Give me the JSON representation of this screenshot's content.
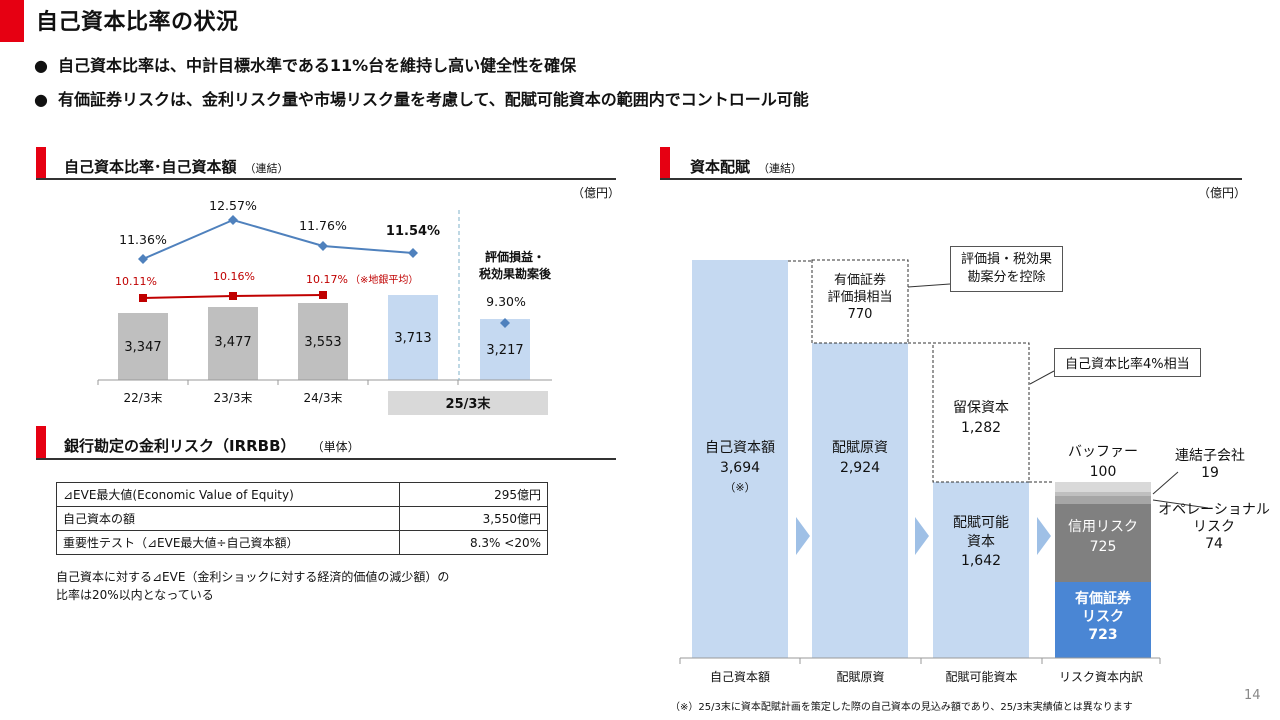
{
  "page": {
    "title": "自己資本比率の状況",
    "bullets": [
      "自己資本比率は、中計目標水準である11%台を維持し高い健全性を確保",
      "有価証券リスクは、金利リスク量や市場リスク量を考慮して、配賦可能資本の範囲内でコントロール可能"
    ],
    "bullet_glyph": "●",
    "page_number": "14",
    "footnote": "（※）25/3末に資本配賦計画を策定した際の自己資本の見込み額であり、25/3末実績値とは異なります"
  },
  "left_chart": {
    "section_title": "自己資本比率･自己資本額",
    "section_sub": "（連結）",
    "unit": "（億円）",
    "ratio_labels": [
      "11.36%",
      "12.57%",
      "11.76%",
      "11.54%"
    ],
    "regional_labels": [
      "10.11%",
      "10.16%",
      "10.17%"
    ],
    "regional_note": "（※地銀平均）",
    "after_label": "評価損益・\n税効果勘案後",
    "after_ratio": "9.30%",
    "bar_values": [
      "3,347",
      "3,477",
      "3,553",
      "3,713",
      "3,217"
    ],
    "categories": [
      "22/3末",
      "23/3末",
      "24/3末"
    ],
    "highlight_category": "25/3末"
  },
  "chart_data": {
    "type": "bar",
    "categories": [
      "22/3末",
      "23/3末",
      "24/3末",
      "25/3末",
      "評価損益・税効果勘案後"
    ],
    "series": [
      {
        "name": "自己資本額",
        "values": [
          3347,
          3477,
          3553,
          3713,
          3217
        ]
      },
      {
        "name": "自己資本比率",
        "values": [
          11.36,
          12.57,
          11.76,
          11.54,
          9.3
        ]
      },
      {
        "name": "地銀平均",
        "values": [
          10.11,
          10.16,
          10.17,
          null,
          null
        ]
      }
    ],
    "ylabel": "（億円）",
    "colors": {
      "bar": "#bfbfbf",
      "bar_highlight": "#c5d9f1",
      "ratio_line": "#4f81bd",
      "regional_line": "#c00000"
    }
  },
  "irrbb": {
    "section_title": "銀行勘定の金利リスク（IRRBB）",
    "section_sub": "（単体）",
    "rows": [
      {
        "label": "⊿EVE最大値(Economic Value of Equity)",
        "value": "295億円"
      },
      {
        "label": "自己資本の額",
        "value": "3,550億円"
      },
      {
        "label": "重要性テスト（⊿EVE最大値÷自己資本額）",
        "value": "8.3% <20%"
      }
    ],
    "note_line1": "自己資本に対する⊿EVE（金利ショックに対する経済的価値の減少額）の",
    "note_line2": "比率は20%以内となっている"
  },
  "allocation": {
    "section_title": "資本配賦",
    "section_sub": "（連結）",
    "unit": "（億円）",
    "col1": {
      "label": "自己資本額",
      "value": "3,694",
      "mark": "（※）"
    },
    "col2": {
      "label": "配賦原資",
      "value": "2,924"
    },
    "col2_top": {
      "label1": "有価証券",
      "label2": "評価損相当",
      "value": "770"
    },
    "col3": {
      "label1": "配賦可能",
      "label2": "資本",
      "value": "1,642"
    },
    "col3_top": {
      "label": "留保資本",
      "value": "1,282"
    },
    "col4_credit": {
      "label": "信用リスク",
      "value": "725"
    },
    "col4_sec": {
      "label1": "有価証券",
      "label2": "リスク",
      "value": "723"
    },
    "callout1": {
      "line1": "評価損・税効果",
      "line2": "勘案分を控除"
    },
    "callout2": "自己資本比率4%相当",
    "buffer": {
      "label": "バッファー",
      "value": "100"
    },
    "subsidiary": {
      "label": "連結子会社",
      "value": "19"
    },
    "operational": {
      "label1": "オペレーショナル",
      "label2": "リスク",
      "value": "74"
    },
    "x_labels": [
      "自己資本額",
      "配賦原資",
      "配賦可能資本",
      "リスク資本内訳"
    ],
    "colors": {
      "light_blue": "#c5d9f1",
      "grey": "#808080",
      "blue": "#4a86d4"
    }
  }
}
